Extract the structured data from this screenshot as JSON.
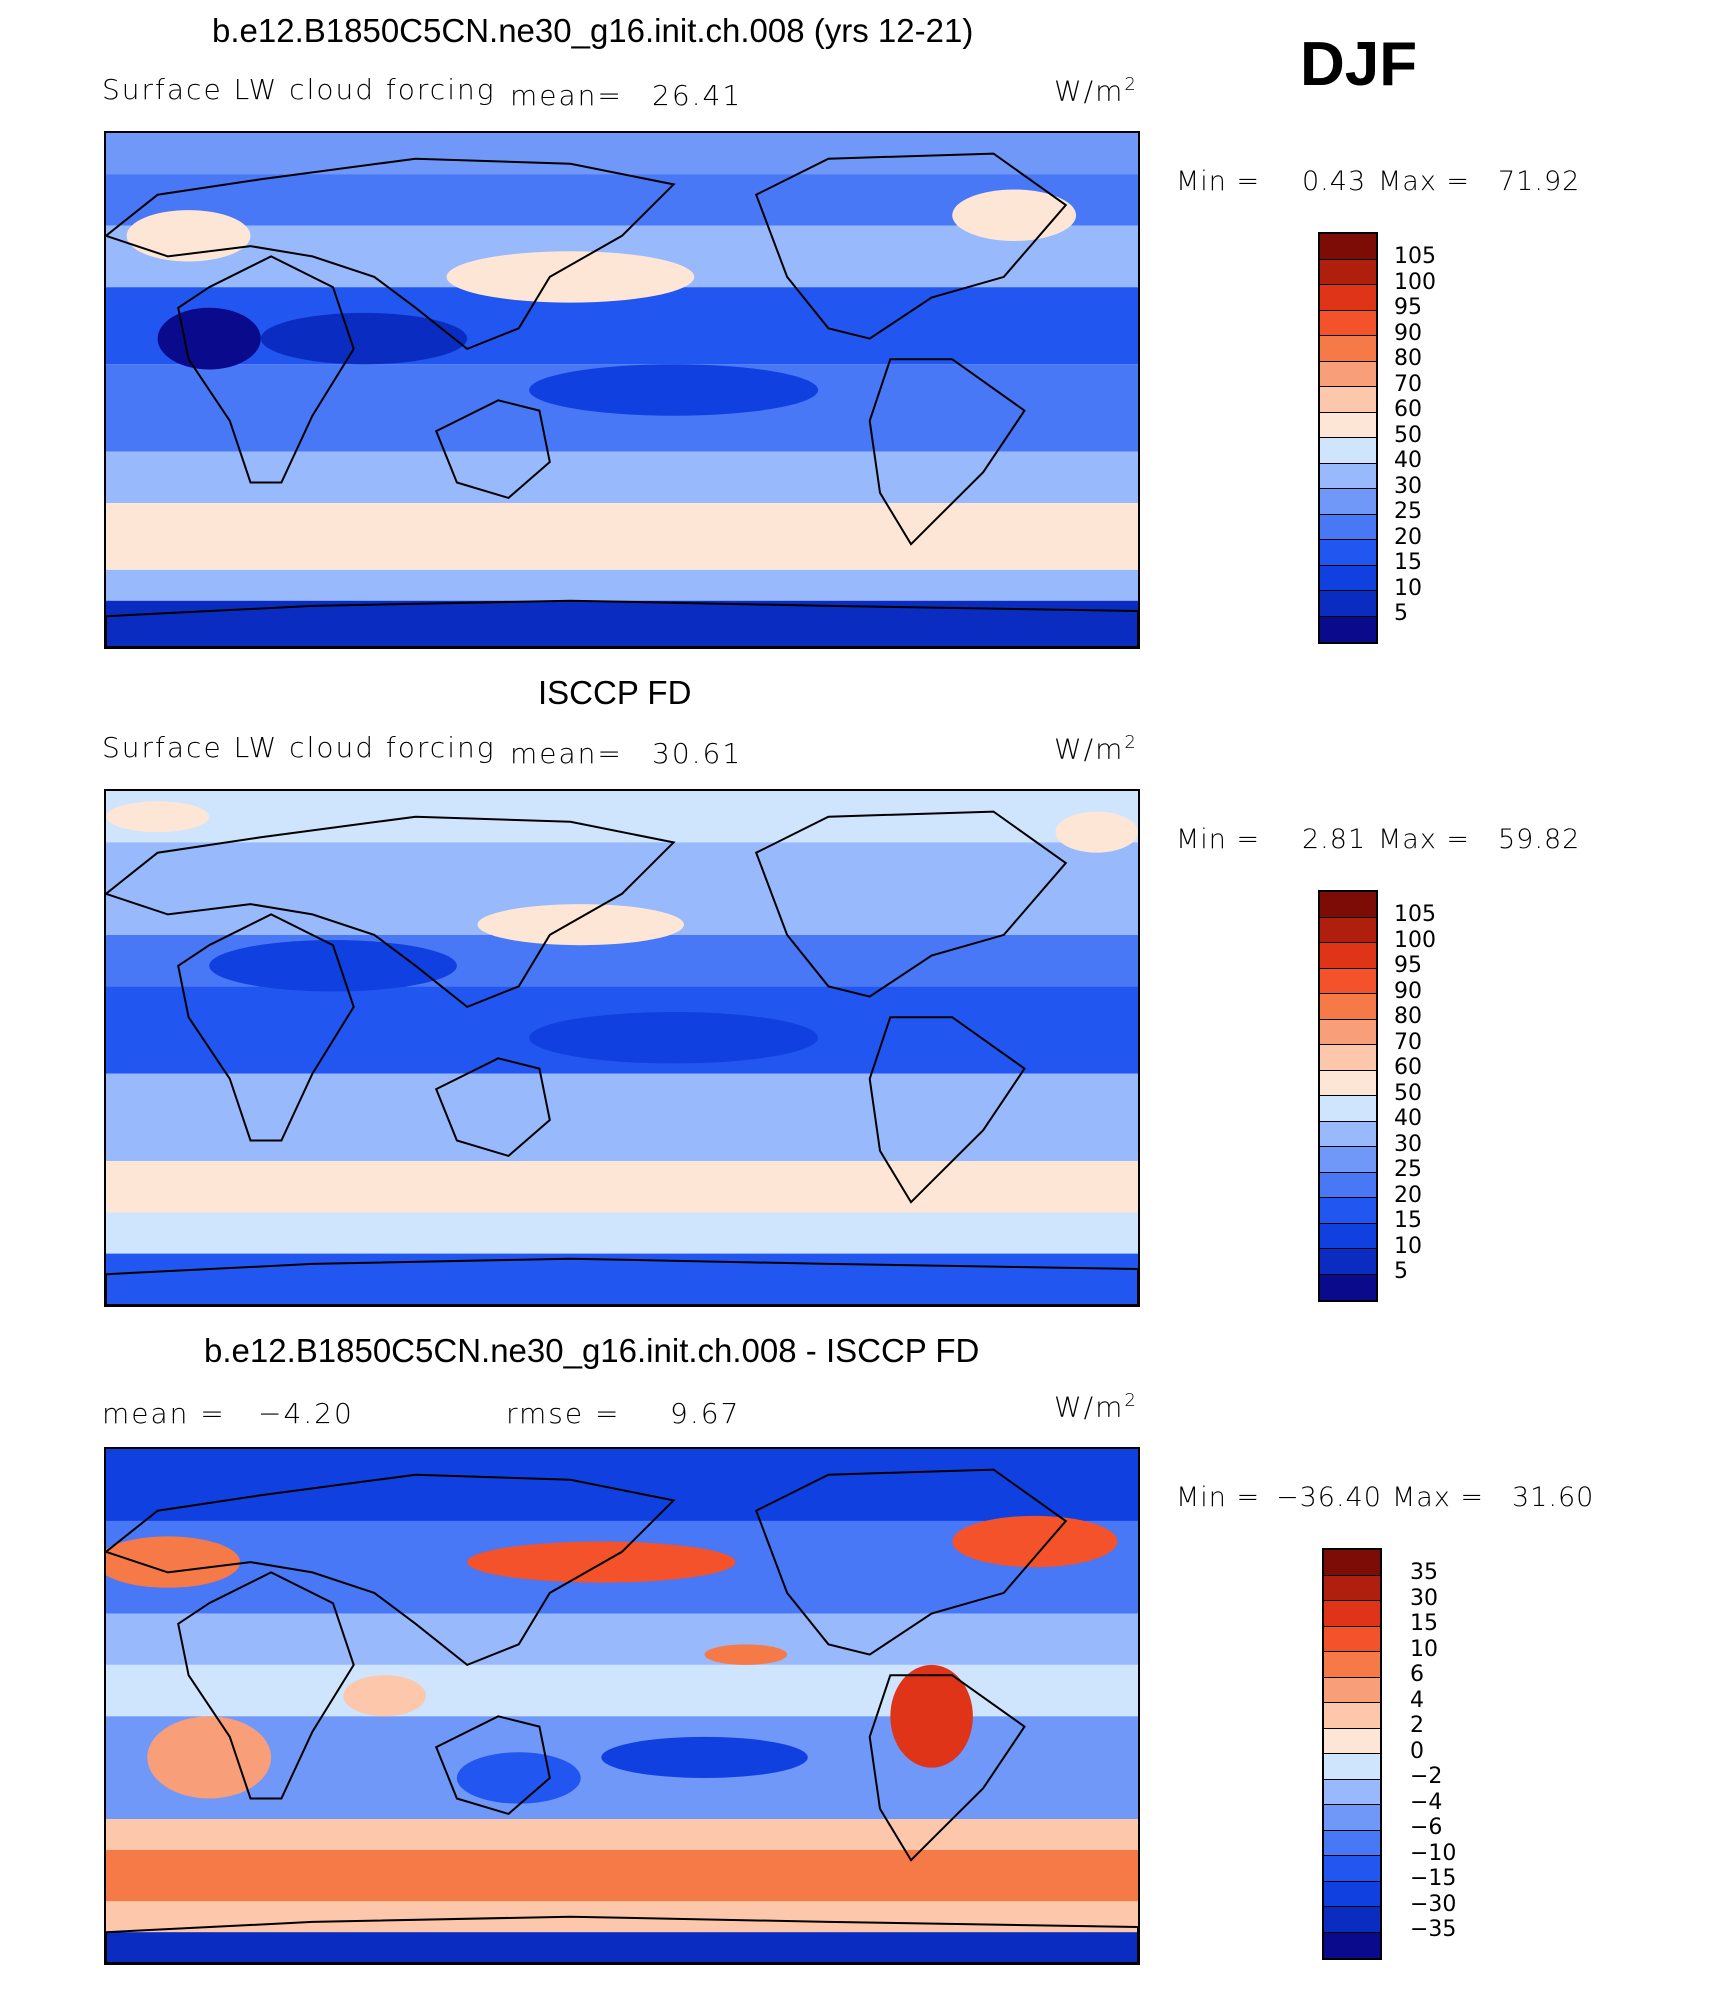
{
  "season": "DJF",
  "palette_main": [
    "#0a0a8c",
    "#0b2cc0",
    "#1040e0",
    "#2256f0",
    "#4878f5",
    "#6f98f8",
    "#98b9fb",
    "#cfe4fd",
    "#fde6d6",
    "#fcc7ab",
    "#f89e79",
    "#f67948",
    "#f4522a",
    "#e03418",
    "#b01f0d",
    "#7d0c06"
  ],
  "palette_diff": [
    "#0a0a8c",
    "#0b2cc0",
    "#1040e0",
    "#2256f0",
    "#4878f5",
    "#6f98f8",
    "#98b9fb",
    "#cfe4fd",
    "#fde6d6",
    "#fcc7ab",
    "#f89e79",
    "#f67948",
    "#f4522a",
    "#e03418",
    "#b01f0d",
    "#7d0c06"
  ],
  "panels": [
    {
      "title": "b.e12.B1850C5CN.ne30_g16.init.ch.008 (yrs 12-21)",
      "left_label": "Surface LW cloud forcing",
      "center_label": "mean=",
      "center_value": "26.41",
      "units": "W/m",
      "units_sup": "2",
      "min_label": "Min =",
      "min_value": "0.43",
      "max_label": "Max =",
      "max_value": "71.92",
      "levels": [
        "105",
        "100",
        "95",
        "90",
        "80",
        "70",
        "60",
        "50",
        "40",
        "30",
        "25",
        "20",
        "15",
        "10",
        "5"
      ],
      "map_pattern": "model"
    },
    {
      "title": "ISCCP FD",
      "left_label": "Surface LW cloud forcing",
      "center_label": "mean=",
      "center_value": "30.61",
      "units": "W/m",
      "units_sup": "2",
      "min_label": "Min =",
      "min_value": "2.81",
      "max_label": "Max =",
      "max_value": "59.82",
      "levels": [
        "105",
        "100",
        "95",
        "90",
        "80",
        "70",
        "60",
        "50",
        "40",
        "30",
        "25",
        "20",
        "15",
        "10",
        "5"
      ],
      "map_pattern": "obs"
    },
    {
      "title": "b.e12.B1850C5CN.ne30_g16.init.ch.008 - ISCCP FD",
      "left_label": "mean =",
      "left_value": "−4.20",
      "center_label": "rmse =",
      "center_value": "9.67",
      "units": "W/m",
      "units_sup": "2",
      "min_label": "Min =",
      "min_value": "−36.40",
      "max_label": "Max =",
      "max_value": "31.60",
      "levels": [
        "35",
        "30",
        "15",
        "10",
        "6",
        "4",
        "2",
        "0",
        "−2",
        "−4",
        "−6",
        "−10",
        "−15",
        "−30",
        "−35"
      ],
      "map_pattern": "diff"
    }
  ]
}
